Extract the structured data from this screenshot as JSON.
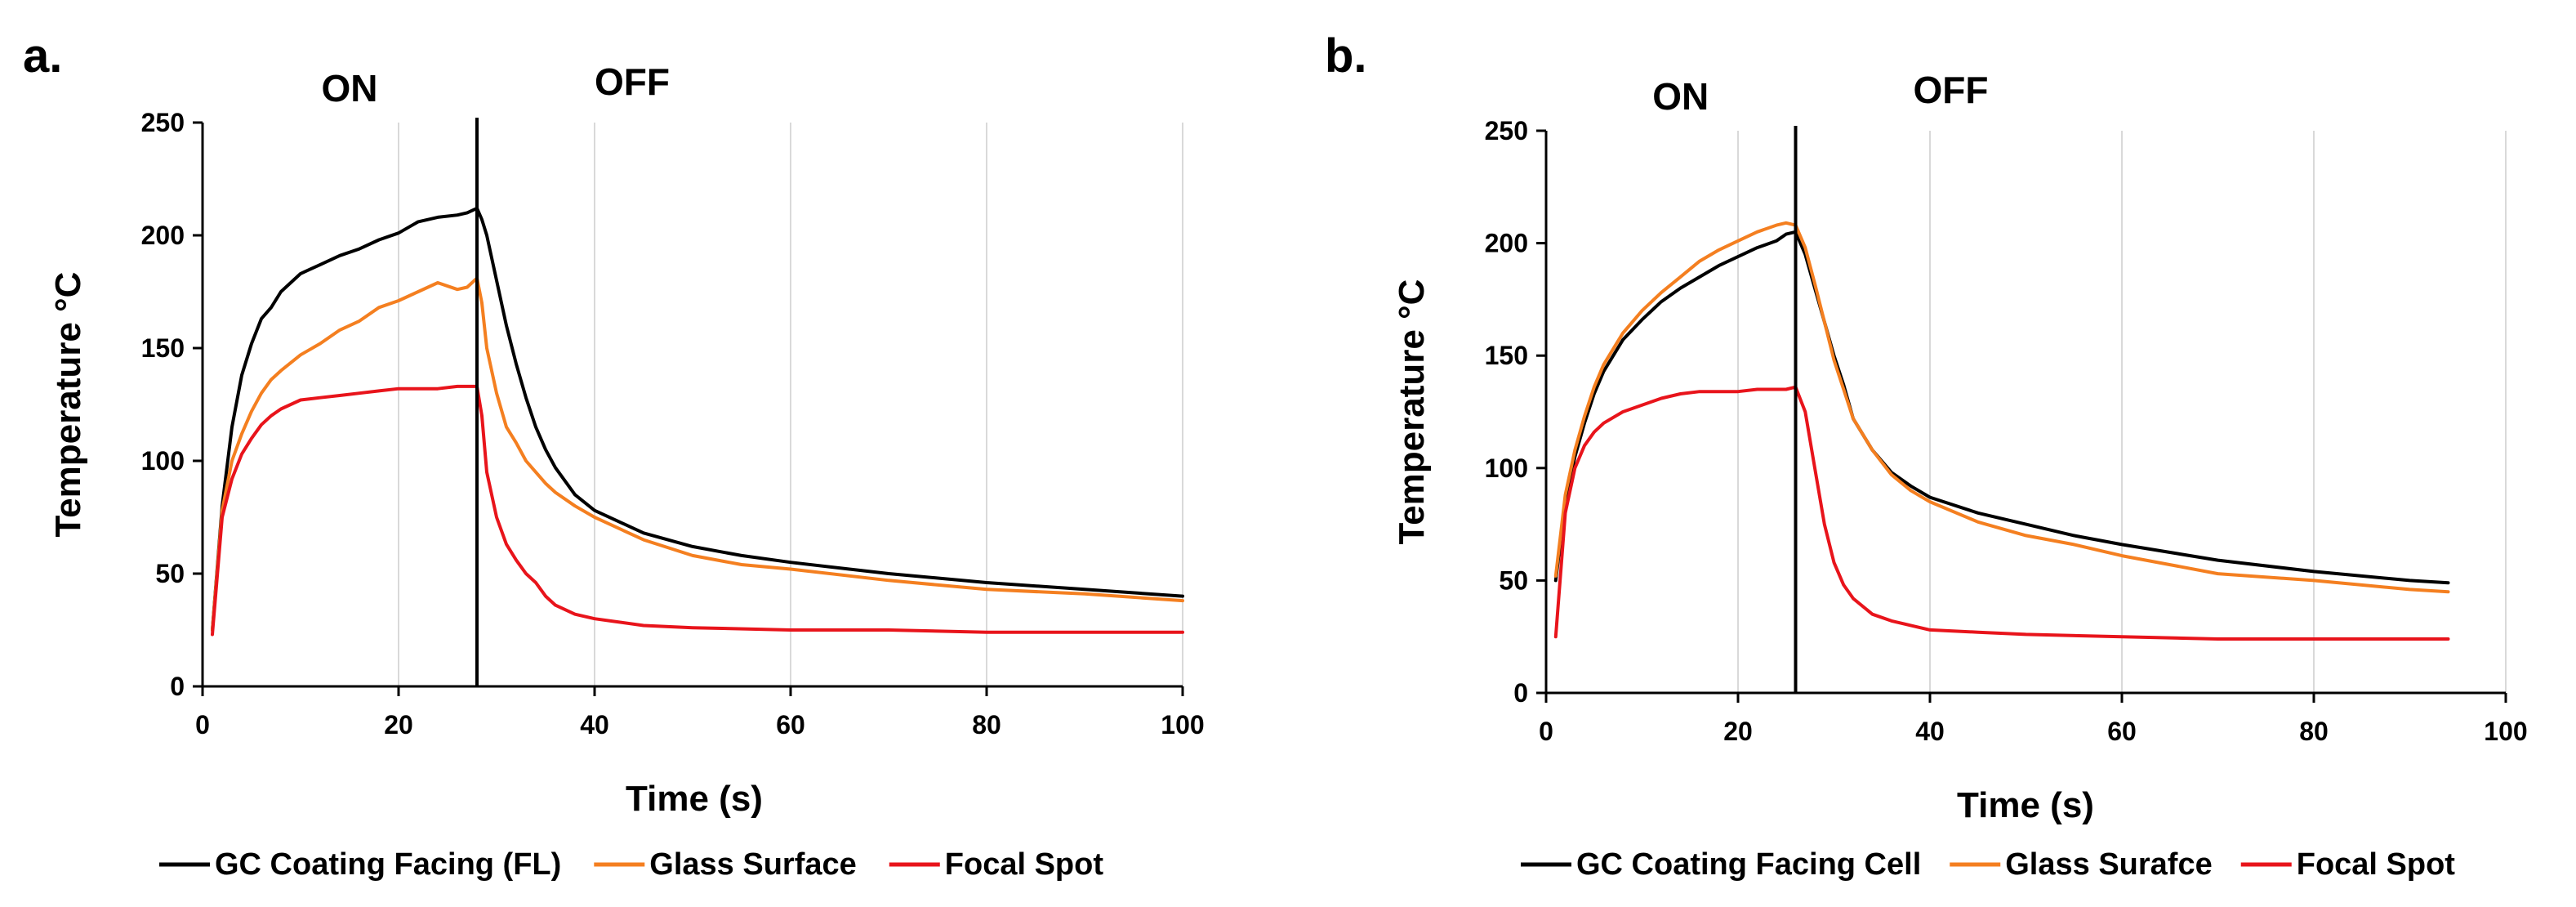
{
  "colors": {
    "coating": "#000000",
    "glass": "#f47f20",
    "focal": "#e8141b",
    "grid": "#d9d9d9",
    "axis": "#000000"
  },
  "chart_data": [
    {
      "type": "line",
      "panel_label": "a.",
      "phase_on_label": "ON",
      "phase_off_label": "OFF",
      "switch_time": 28,
      "xlabel": "Time (s)",
      "ylabel": "Temperature °C",
      "xlim": [
        0,
        100
      ],
      "ylim": [
        0,
        250
      ],
      "x_ticks": [
        0,
        20,
        40,
        60,
        80,
        100
      ],
      "y_ticks": [
        0,
        50,
        100,
        150,
        200,
        250
      ],
      "grid": "vertical",
      "legend_position": "bottom",
      "series": [
        {
          "name": "GC Coating Facing (FL)",
          "color_key": "coating",
          "x": [
            1,
            2,
            3,
            4,
            5,
            6,
            7,
            8,
            10,
            12,
            14,
            16,
            18,
            20,
            22,
            24,
            26,
            27,
            28,
            28.5,
            29,
            30,
            31,
            32,
            33,
            34,
            35,
            36,
            38,
            40,
            45,
            50,
            55,
            60,
            70,
            80,
            90,
            100
          ],
          "y": [
            25,
            80,
            115,
            138,
            152,
            163,
            168,
            175,
            183,
            187,
            191,
            194,
            198,
            201,
            206,
            208,
            209,
            210,
            212,
            207,
            200,
            180,
            160,
            143,
            128,
            115,
            105,
            97,
            85,
            78,
            68,
            62,
            58,
            55,
            50,
            46,
            43,
            40
          ]
        },
        {
          "name": "Glass Surface",
          "color_key": "glass",
          "x": [
            1,
            2,
            3,
            4,
            5,
            6,
            7,
            8,
            10,
            12,
            14,
            16,
            18,
            20,
            22,
            24,
            26,
            27,
            28,
            28.5,
            29,
            30,
            31,
            32,
            33,
            34,
            35,
            36,
            38,
            40,
            45,
            50,
            55,
            60,
            70,
            80,
            90,
            100
          ],
          "y": [
            25,
            78,
            100,
            112,
            122,
            130,
            136,
            140,
            147,
            152,
            158,
            162,
            168,
            171,
            175,
            179,
            176,
            177,
            181,
            170,
            150,
            130,
            115,
            108,
            100,
            95,
            90,
            86,
            80,
            75,
            65,
            58,
            54,
            52,
            47,
            43,
            41,
            38
          ]
        },
        {
          "name": "Focal Spot",
          "color_key": "focal",
          "x": [
            1,
            2,
            3,
            4,
            5,
            6,
            7,
            8,
            10,
            12,
            14,
            16,
            18,
            20,
            22,
            24,
            26,
            27,
            28,
            28.5,
            29,
            30,
            31,
            32,
            33,
            34,
            35,
            36,
            38,
            40,
            45,
            50,
            60,
            70,
            80,
            90,
            100
          ],
          "y": [
            23,
            75,
            92,
            103,
            110,
            116,
            120,
            123,
            127,
            128,
            129,
            130,
            131,
            132,
            132,
            132,
            133,
            133,
            133,
            120,
            95,
            75,
            63,
            56,
            50,
            46,
            40,
            36,
            32,
            30,
            27,
            26,
            25,
            25,
            24,
            24,
            24
          ]
        }
      ]
    },
    {
      "type": "line",
      "panel_label": "b.",
      "phase_on_label": "ON",
      "phase_off_label": "OFF",
      "switch_time": 26,
      "xlabel": "Time (s)",
      "ylabel": "Temperature °C",
      "xlim": [
        0,
        100
      ],
      "ylim": [
        0,
        250
      ],
      "x_ticks": [
        0,
        20,
        40,
        60,
        80,
        100
      ],
      "y_ticks": [
        0,
        50,
        100,
        150,
        200,
        250
      ],
      "grid": "vertical",
      "legend_position": "bottom",
      "series": [
        {
          "name": "GC Coating Facing Cell",
          "color_key": "coating",
          "x": [
            1,
            2,
            3,
            4,
            5,
            6,
            8,
            10,
            12,
            14,
            16,
            18,
            20,
            22,
            24,
            25,
            26,
            27,
            28,
            29,
            30,
            31,
            32,
            34,
            36,
            38,
            40,
            45,
            50,
            55,
            60,
            70,
            80,
            90,
            94
          ],
          "y": [
            50,
            85,
            105,
            120,
            133,
            143,
            157,
            166,
            174,
            180,
            185,
            190,
            194,
            198,
            201,
            204,
            205,
            195,
            180,
            165,
            150,
            137,
            122,
            108,
            98,
            92,
            87,
            80,
            75,
            70,
            66,
            59,
            54,
            50,
            49
          ]
        },
        {
          "name": "Glass Surafce",
          "color_key": "glass",
          "x": [
            1,
            2,
            3,
            4,
            5,
            6,
            8,
            10,
            12,
            14,
            16,
            18,
            20,
            22,
            24,
            25,
            26,
            27,
            28,
            29,
            30,
            31,
            32,
            34,
            36,
            38,
            40,
            45,
            50,
            55,
            60,
            70,
            80,
            90,
            94
          ],
          "y": [
            52,
            88,
            108,
            123,
            136,
            146,
            160,
            170,
            178,
            185,
            192,
            197,
            201,
            205,
            208,
            209,
            208,
            198,
            182,
            165,
            148,
            135,
            122,
            108,
            97,
            90,
            85,
            76,
            70,
            66,
            61,
            53,
            50,
            46,
            45
          ]
        },
        {
          "name": "Focal Spot",
          "color_key": "focal",
          "x": [
            1,
            2,
            3,
            4,
            5,
            6,
            8,
            10,
            12,
            14,
            16,
            18,
            20,
            22,
            24,
            25,
            26,
            27,
            28,
            29,
            30,
            31,
            32,
            34,
            36,
            38,
            40,
            45,
            50,
            60,
            70,
            80,
            90,
            94
          ],
          "y": [
            25,
            80,
            100,
            110,
            116,
            120,
            125,
            128,
            131,
            133,
            134,
            134,
            134,
            135,
            135,
            135,
            136,
            125,
            100,
            75,
            58,
            48,
            42,
            35,
            32,
            30,
            28,
            27,
            26,
            25,
            24,
            24,
            24,
            24
          ]
        }
      ]
    }
  ]
}
